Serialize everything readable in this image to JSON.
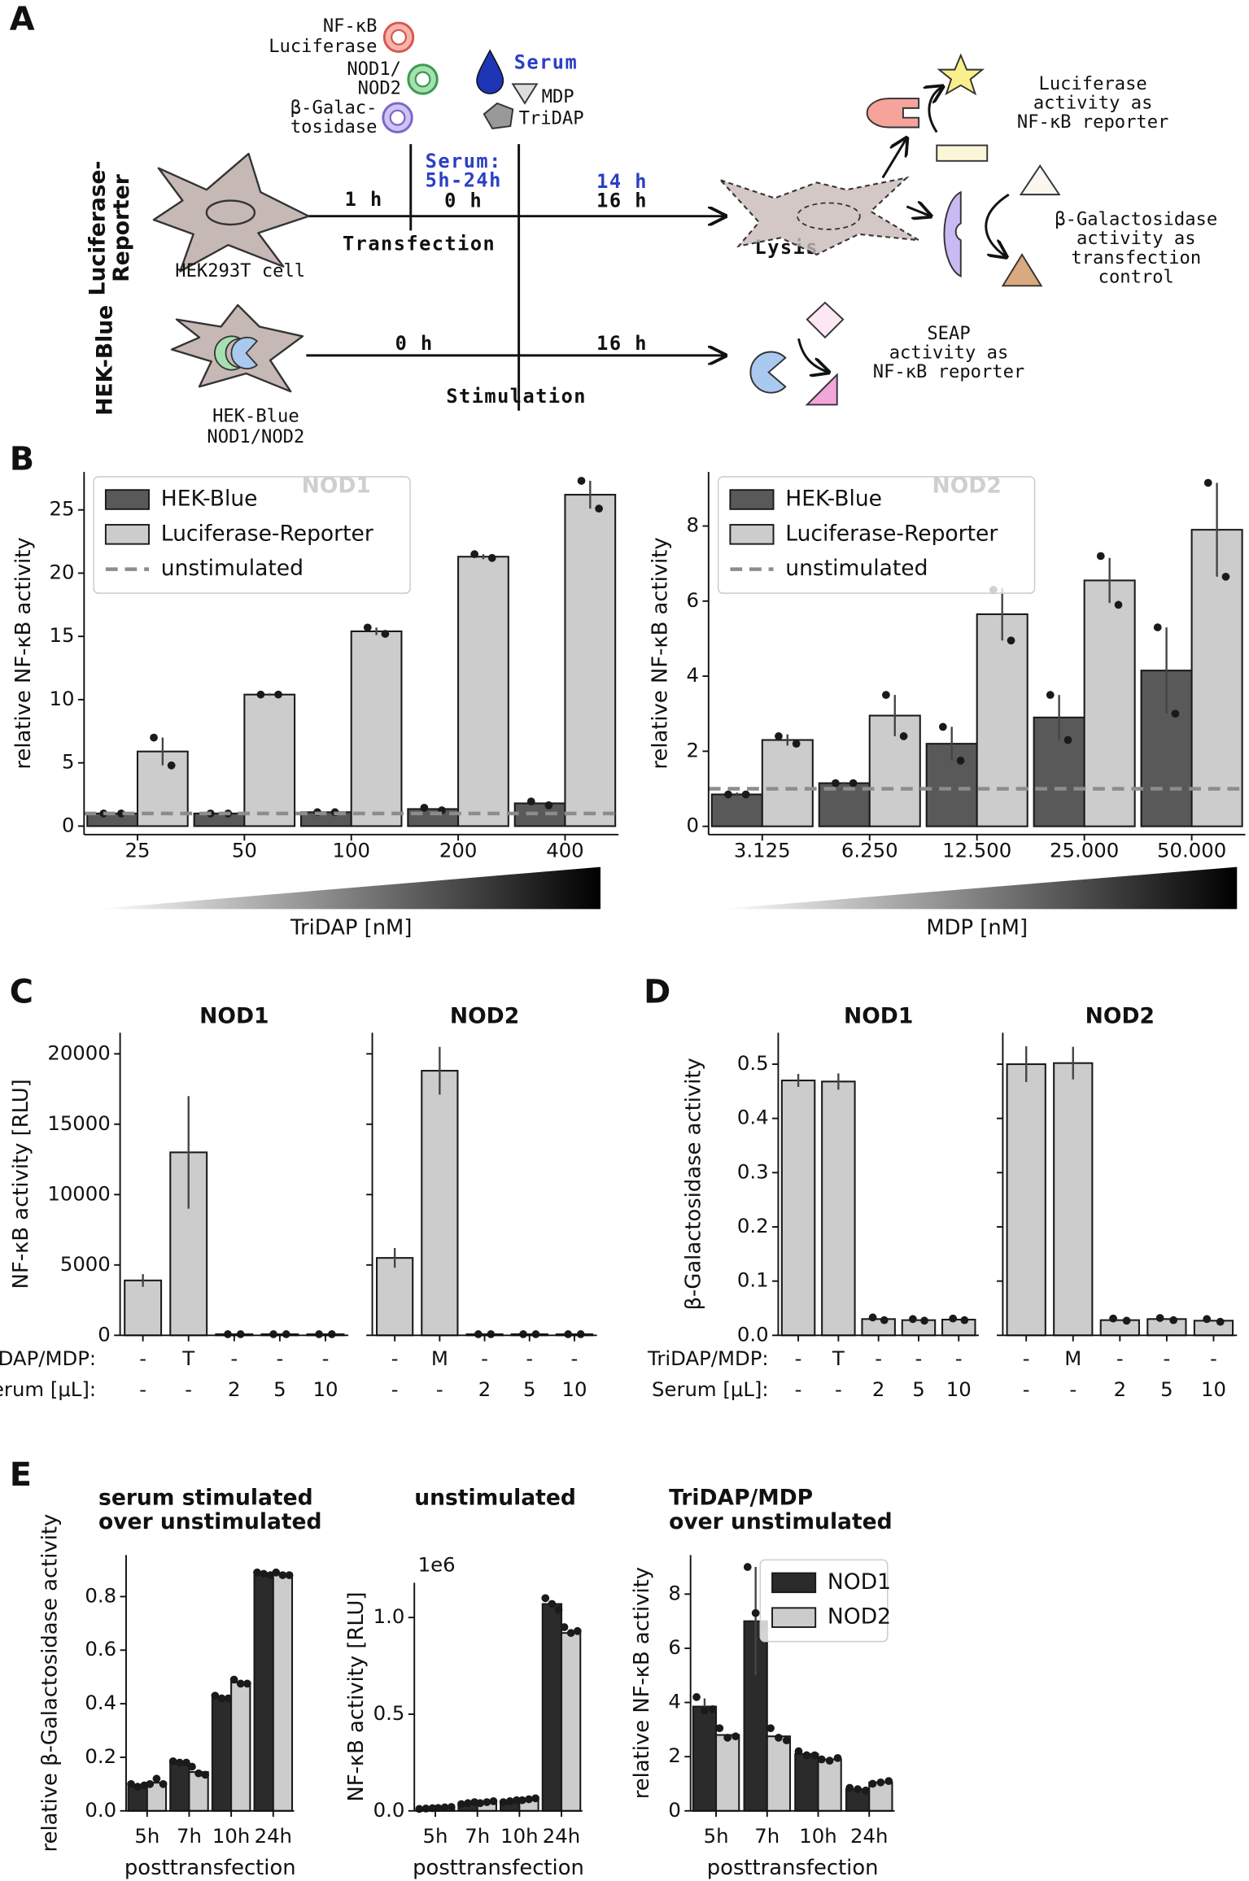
{
  "diagram": {
    "panel_label": "A",
    "plasmids": [
      "NF-κB",
      "Luciferase",
      "NOD1/",
      "NOD2",
      "β-Galac-",
      "tosidase"
    ],
    "serum": "Serum",
    "ligands": [
      "MDP",
      "TriDAP"
    ],
    "serum_window": [
      "Serum:",
      "5h-24h"
    ],
    "times_top": [
      "1 h",
      "0 h",
      "14 h",
      "16 h"
    ],
    "times_bottom": [
      "0 h",
      "16 h"
    ],
    "steps": [
      "Transfection",
      "Lysis",
      "Stimulation"
    ],
    "rows": [
      "Luciferase-",
      "Reporter",
      "HEK-Blue"
    ],
    "cells": [
      "HEK293T cell",
      "HEK-Blue",
      "NOD1/NOD2"
    ],
    "readouts": [
      [
        "Luciferase",
        "activity as",
        "NF-κB reporter"
      ],
      [
        "β-Galactosidase",
        "activity as",
        "transfection",
        "control"
      ],
      [
        "SEAP",
        "activity as",
        "NF-κB reporter"
      ]
    ]
  },
  "panel_labels": [
    "B",
    "C",
    "D",
    "E"
  ],
  "chart_data": [
    {
      "type": "bar",
      "title": "NOD1",
      "ylabel": "relative NF-κB activity",
      "xlabel": "TriDAP [nM]",
      "categories": [
        "25",
        "50",
        "100",
        "200",
        "400"
      ],
      "series": [
        {
          "name": "HEK-Blue",
          "color": "#595959",
          "values": [
            1.0,
            1.0,
            1.1,
            1.35,
            1.8
          ],
          "points": [
            [
              1.0,
              1.0
            ],
            [
              1.0,
              1.0
            ],
            [
              1.1,
              1.1
            ],
            [
              1.45,
              1.25
            ],
            [
              1.95,
              1.65
            ]
          ]
        },
        {
          "name": "Luciferase-Reporter",
          "color": "#cccccc",
          "values": [
            5.9,
            10.4,
            15.4,
            21.3,
            26.2
          ],
          "errors": [
            1.1,
            0.1,
            0.3,
            0.2,
            1.1
          ],
          "points": [
            [
              7.0,
              4.8
            ],
            [
              10.4,
              10.4
            ],
            [
              15.7,
              15.2
            ],
            [
              21.5,
              21.2
            ],
            [
              27.3,
              25.1
            ]
          ]
        }
      ],
      "reference_line": {
        "name": "unstimulated",
        "value": 1,
        "color": "#8c8c8c"
      },
      "ylim": [
        -0.67,
        28
      ],
      "yticks": [
        0,
        5,
        10,
        15,
        20,
        25
      ],
      "legend": "upper left"
    },
    {
      "type": "bar",
      "title": "NOD2",
      "ylabel": "relative NF-κB activity",
      "xlabel": "MDP [nM]",
      "categories": [
        "3.125",
        "6.250",
        "12.500",
        "25.000",
        "50.000"
      ],
      "series": [
        {
          "name": "HEK-Blue",
          "color": "#595959",
          "values": [
            0.85,
            1.15,
            2.2,
            2.9,
            4.15
          ],
          "errors": [
            0.05,
            0.03,
            0.45,
            0.6,
            1.15
          ],
          "points": [
            [
              0.85,
              0.85
            ],
            [
              1.15,
              1.15
            ],
            [
              2.65,
              1.75
            ],
            [
              3.5,
              2.3
            ],
            [
              5.3,
              3.0
            ]
          ]
        },
        {
          "name": "Luciferase-Reporter",
          "color": "#cccccc",
          "values": [
            2.3,
            2.95,
            5.65,
            6.55,
            7.9
          ],
          "errors": [
            0.15,
            0.55,
            0.7,
            0.6,
            1.25
          ],
          "points": [
            [
              2.4,
              2.2
            ],
            [
              3.5,
              2.4
            ],
            [
              6.3,
              4.95
            ],
            [
              7.2,
              5.9
            ],
            [
              9.15,
              6.65
            ]
          ]
        }
      ],
      "reference_line": {
        "name": "unstimulated",
        "value": 1,
        "color": "#8c8c8c"
      },
      "ylim": [
        -0.22,
        9.44
      ],
      "yticks": [
        0,
        2,
        4,
        6,
        8
      ],
      "legend": "upper left"
    },
    {
      "type": "bar",
      "title": "NOD1",
      "ylabel": "NF-κB activity  [RLU]",
      "row_labels": [
        "TriDAP/MDP:",
        "Serum [μL]:"
      ],
      "categories": [
        "-",
        "T",
        "-",
        "-",
        "-"
      ],
      "categories2": [
        "-",
        "-",
        "2",
        "5",
        "10"
      ],
      "series": [
        {
          "color": "#cccccc",
          "values": [
            3900,
            13000,
            80,
            80,
            80
          ],
          "errors": [
            450,
            4000,
            null,
            null,
            null
          ],
          "points": [
            null,
            null,
            [
              80,
              80
            ],
            [
              80,
              80
            ],
            [
              80,
              80
            ]
          ]
        }
      ],
      "ylim": [
        0,
        21500
      ],
      "yticks": [
        0,
        5000,
        10000,
        15000,
        20000
      ]
    },
    {
      "type": "bar",
      "title": "NOD2",
      "categories": [
        "-",
        "M",
        "-",
        "-",
        "-"
      ],
      "categories2": [
        "-",
        "-",
        "2",
        "5",
        "10"
      ],
      "series": [
        {
          "color": "#cccccc",
          "values": [
            5500,
            18800,
            80,
            80,
            80
          ],
          "errors": [
            700,
            1700,
            null,
            null,
            null
          ],
          "points": [
            null,
            null,
            [
              80,
              80
            ],
            [
              80,
              80
            ],
            [
              80,
              80
            ]
          ]
        }
      ],
      "ylim": [
        0,
        21500
      ],
      "yticks": [
        0,
        5000,
        10000,
        15000,
        20000
      ],
      "ytick_labels": false
    },
    {
      "type": "bar",
      "title": "NOD1",
      "ylabel": "β-Galactosidase activity",
      "row_labels": [
        "TriDAP/MDP:",
        "Serum [μL]:"
      ],
      "categories": [
        "-",
        "T",
        "-",
        "-",
        "-"
      ],
      "categories2": [
        "-",
        "-",
        "2",
        "5",
        "10"
      ],
      "series": [
        {
          "color": "#cccccc",
          "values": [
            0.47,
            0.468,
            0.03,
            0.028,
            0.029
          ],
          "errors": [
            0.012,
            0.015,
            null,
            null,
            null
          ],
          "points": [
            null,
            null,
            [
              0.033,
              0.028
            ],
            [
              0.03,
              0.027
            ],
            [
              0.031,
              0.028
            ]
          ]
        }
      ],
      "ylim": [
        0,
        0.558
      ],
      "yticks": [
        {
          "value": 0,
          "label": "0.0"
        },
        0.1,
        0.2,
        0.3,
        0.4,
        0.5
      ]
    },
    {
      "type": "bar",
      "title": "NOD2",
      "categories": [
        "-",
        "M",
        "-",
        "-",
        "-"
      ],
      "categories2": [
        "-",
        "-",
        "2",
        "5",
        "10"
      ],
      "series": [
        {
          "color": "#cccccc",
          "values": [
            0.5,
            0.502,
            0.028,
            0.03,
            0.027
          ],
          "errors": [
            0.033,
            0.03,
            null,
            null,
            null
          ],
          "points": [
            null,
            null,
            [
              0.031,
              0.027
            ],
            [
              0.032,
              0.028
            ],
            [
              0.03,
              0.025
            ]
          ]
        }
      ],
      "ylim": [
        0,
        0.558
      ],
      "yticks": [
        {
          "value": 0,
          "label": "0.0"
        },
        0.1,
        0.2,
        0.3,
        0.4,
        0.5
      ],
      "ytick_labels": false
    },
    {
      "type": "bar",
      "title": [
        "serum stimulated",
        "over unstimulated"
      ],
      "ylabel": "relative β-Galactosidase activity",
      "xlabel": "posttransfection",
      "categories": [
        "5h",
        "7h",
        "10h",
        "24h"
      ],
      "series": [
        {
          "color": "#2b2b2b",
          "values": [
            0.095,
            0.18,
            0.42,
            0.885
          ],
          "points": [
            [
              0.1,
              0.09,
              0.095
            ],
            [
              0.185,
              0.18,
              0.18
            ],
            [
              0.43,
              0.42,
              0.42
            ],
            [
              0.89,
              0.885,
              0.88
            ]
          ]
        },
        {
          "color": "#cccccc",
          "values": [
            0.105,
            0.145,
            0.48,
            0.885
          ],
          "points": [
            [
              0.1,
              0.12,
              0.1
            ],
            [
              0.165,
              0.14,
              0.135
            ],
            [
              0.49,
              0.475,
              0.475
            ],
            [
              0.89,
              0.88,
              0.88
            ]
          ]
        }
      ],
      "ylim": [
        0,
        0.955
      ],
      "yticks": [
        {
          "value": 0,
          "label": "0.0"
        },
        0.2,
        0.4,
        0.6,
        0.8
      ]
    },
    {
      "type": "bar",
      "title": [
        "unstimulated"
      ],
      "ylabel": "NF-κB activity [RLU]",
      "xlabel": "posttransfection",
      "offset_label": "1e6",
      "categories": [
        "5h",
        "7h",
        "10h",
        "24h"
      ],
      "series": [
        {
          "color": "#2b2b2b",
          "values": [
            0.012,
            0.04,
            0.05,
            1.07
          ],
          "points": [
            [
              0.01,
              0.012,
              0.014
            ],
            [
              0.035,
              0.04,
              0.045
            ],
            [
              0.045,
              0.05,
              0.055
            ],
            [
              1.1,
              1.07,
              1.04
            ]
          ]
        },
        {
          "color": "#cccccc",
          "values": [
            0.018,
            0.045,
            0.06,
            0.92
          ],
          "points": [
            [
              0.015,
              0.018,
              0.02
            ],
            [
              0.04,
              0.045,
              0.05
            ],
            [
              0.055,
              0.06,
              0.065
            ],
            [
              0.95,
              0.92,
              0.93
            ]
          ]
        }
      ],
      "ylim": [
        0,
        1.18
      ],
      "yticks": [
        {
          "value": 0,
          "label": "0.0"
        },
        0.5,
        {
          "value": 1,
          "label": "1.0"
        }
      ]
    },
    {
      "type": "bar",
      "title": [
        "TriDAP/MDP",
        "over unstimulated"
      ],
      "ylabel": "relative NF-κB activity",
      "xlabel": "posttransfection",
      "categories": [
        "5h",
        "7h",
        "10h",
        "24h"
      ],
      "series": [
        {
          "name": "NOD1",
          "color": "#2b2b2b",
          "values": [
            3.85,
            7.0,
            2.1,
            0.8
          ],
          "errors": [
            0.3,
            2.0,
            0.1,
            0.05
          ],
          "points": [
            [
              4.2,
              3.7,
              3.75
            ],
            [
              9.0,
              7.3,
              6.8
            ],
            [
              2.2,
              2.05,
              2.05
            ],
            [
              0.85,
              0.8,
              0.75
            ]
          ]
        },
        {
          "name": "NOD2",
          "color": "#cccccc",
          "values": [
            2.8,
            2.75,
            1.9,
            1.05
          ],
          "points": [
            [
              3.05,
              2.7,
              2.75
            ],
            [
              3.05,
              2.7,
              2.6
            ],
            [
              1.9,
              1.85,
              1.95
            ],
            [
              1.0,
              1.05,
              1.1
            ]
          ]
        }
      ],
      "ylim": [
        0,
        9.44
      ],
      "yticks": [
        0,
        2,
        4,
        6,
        8
      ],
      "legend": "upper right"
    }
  ]
}
